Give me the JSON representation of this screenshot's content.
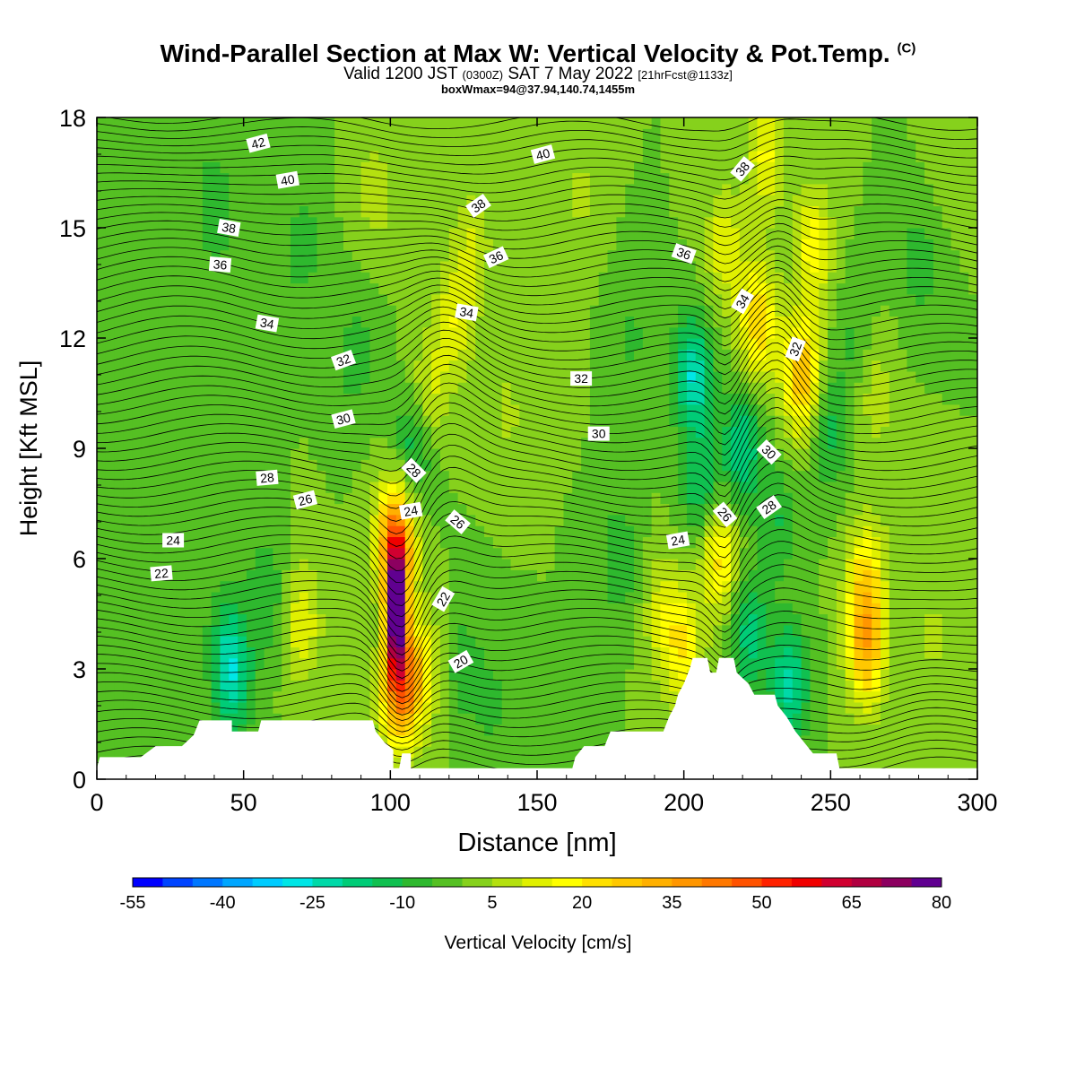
{
  "title": "Wind-Parallel Section at Max W: Vertical Velocity & Pot.Temp.",
  "title_mark": "(C)",
  "valid_line": {
    "prefix": "Valid 1200 JST",
    "utc": "(0300Z)",
    "date": "SAT 7 May 2022",
    "forecast": "[21hrFcst@1133z]"
  },
  "box_line": "boxWmax=94@37.94,140.74,1455m",
  "chart_data": {
    "type": "heatmap",
    "xlabel": "Distance [nm]",
    "ylabel": "Height [Kft MSL]",
    "xlim": [
      0,
      300
    ],
    "ylim": [
      0,
      18
    ],
    "xticks": [
      0,
      50,
      100,
      150,
      200,
      250,
      300
    ],
    "yticks": [
      0,
      3,
      6,
      9,
      12,
      15,
      18
    ],
    "colorbar": {
      "label": "Vertical Velocity [cm/s]",
      "tick_labels": [
        "-55",
        "-40",
        "-25",
        "-10",
        "5",
        "20",
        "35",
        "50",
        "65",
        "80"
      ],
      "tick_values": [
        -55,
        -40,
        -25,
        -10,
        5,
        20,
        35,
        50,
        65,
        80
      ],
      "levels": [
        -55,
        -50,
        -45,
        -40,
        -35,
        -30,
        -25,
        -20,
        -15,
        -10,
        -5,
        0,
        5,
        10,
        15,
        20,
        25,
        30,
        35,
        40,
        45,
        50,
        55,
        60,
        65,
        70,
        75,
        80
      ],
      "colors": [
        "#0000ff",
        "#0044ff",
        "#0077ff",
        "#00a6ff",
        "#00ccff",
        "#00e6e6",
        "#00d9a8",
        "#00cc77",
        "#10c050",
        "#2eb82e",
        "#55c023",
        "#86d11c",
        "#b4e010",
        "#e0f000",
        "#ffff00",
        "#ffe000",
        "#ffc800",
        "#ffb000",
        "#ff9600",
        "#ff7800",
        "#ff5200",
        "#ff2200",
        "#f00000",
        "#d00030",
        "#b00040",
        "#8c0060",
        "#600090"
      ]
    },
    "background_w": 0,
    "w_cells": [
      {
        "x": 102,
        "z": 4.6,
        "w": 94
      },
      {
        "x": 102,
        "z": 6.5,
        "w": 45
      },
      {
        "x": 103,
        "z": 2.5,
        "w": 40
      },
      {
        "x": 110,
        "z": 3.0,
        "w": 18
      },
      {
        "x": 108,
        "z": 9.0,
        "w": -15
      },
      {
        "x": 113,
        "z": 10.5,
        "w": 12
      },
      {
        "x": 122,
        "z": 12.5,
        "w": 14
      },
      {
        "x": 128,
        "z": 14.5,
        "w": 10
      },
      {
        "x": 140,
        "z": 10.0,
        "w": 6
      },
      {
        "x": 45,
        "z": 3.5,
        "w": -18
      },
      {
        "x": 47,
        "z": 2.3,
        "w": -12
      },
      {
        "x": 58,
        "z": 5.0,
        "w": -10
      },
      {
        "x": 70,
        "z": 4.3,
        "w": 14
      },
      {
        "x": 32,
        "z": 6.0,
        "w": -5
      },
      {
        "x": 40,
        "z": 15.5,
        "w": -10
      },
      {
        "x": 70,
        "z": 14.5,
        "w": -8
      },
      {
        "x": 25,
        "z": 12.0,
        "w": -4
      },
      {
        "x": 88,
        "z": 11.5,
        "w": -8
      },
      {
        "x": 95,
        "z": 16.0,
        "w": 8
      },
      {
        "x": 125,
        "z": 3.0,
        "w": -8
      },
      {
        "x": 135,
        "z": 2.0,
        "w": -6
      },
      {
        "x": 155,
        "z": 12.0,
        "w": 4
      },
      {
        "x": 165,
        "z": 16.0,
        "w": 6
      },
      {
        "x": 178,
        "z": 6.0,
        "w": -10
      },
      {
        "x": 182,
        "z": 12.0,
        "w": -6
      },
      {
        "x": 193,
        "z": 4.5,
        "w": 12
      },
      {
        "x": 200,
        "z": 3.5,
        "w": 18
      },
      {
        "x": 203,
        "z": 11.0,
        "w": -25
      },
      {
        "x": 206,
        "z": 8.0,
        "w": -15
      },
      {
        "x": 212,
        "z": 6.0,
        "w": 22
      },
      {
        "x": 214,
        "z": 14.5,
        "w": 14
      },
      {
        "x": 220,
        "z": 9.0,
        "w": -20
      },
      {
        "x": 222,
        "z": 4.0,
        "w": -18
      },
      {
        "x": 225,
        "z": 12.5,
        "w": 25
      },
      {
        "x": 228,
        "z": 17.0,
        "w": 16
      },
      {
        "x": 232,
        "z": 7.0,
        "w": -10
      },
      {
        "x": 236,
        "z": 2.6,
        "w": -22
      },
      {
        "x": 240,
        "z": 11.0,
        "w": 30
      },
      {
        "x": 244,
        "z": 14.5,
        "w": 18
      },
      {
        "x": 250,
        "z": 9.5,
        "w": -12
      },
      {
        "x": 262,
        "z": 3.6,
        "w": 30
      },
      {
        "x": 262,
        "z": 5.5,
        "w": 20
      },
      {
        "x": 258,
        "z": 12.0,
        "w": -6
      },
      {
        "x": 265,
        "z": 10.5,
        "w": 8
      },
      {
        "x": 280,
        "z": 14.0,
        "w": -8
      },
      {
        "x": 285,
        "z": 4.0,
        "w": 6
      },
      {
        "x": 290,
        "z": 17.0,
        "w": 4
      },
      {
        "x": 275,
        "z": 8.0,
        "w": 4
      }
    ],
    "terrain": [
      [
        0,
        0.3
      ],
      [
        1,
        0.6
      ],
      [
        15,
        0.6
      ],
      [
        20,
        0.9
      ],
      [
        29,
        0.9
      ],
      [
        33,
        1.2
      ],
      [
        35,
        1.6
      ],
      [
        46,
        1.6
      ],
      [
        46,
        1.3
      ],
      [
        55,
        1.3
      ],
      [
        56,
        1.6
      ],
      [
        94,
        1.6
      ],
      [
        95,
        1.3
      ],
      [
        98,
        1.0
      ],
      [
        101,
        0.8
      ],
      [
        101,
        0.3
      ],
      [
        103,
        0.3
      ],
      [
        104,
        0.7
      ],
      [
        107,
        0.7
      ],
      [
        107,
        0.3
      ],
      [
        162,
        0.3
      ],
      [
        163,
        0.6
      ],
      [
        166,
        0.9
      ],
      [
        173,
        0.9
      ],
      [
        175,
        1.3
      ],
      [
        193,
        1.3
      ],
      [
        195,
        1.7
      ],
      [
        197,
        2.0
      ],
      [
        198,
        2.3
      ],
      [
        200,
        2.6
      ],
      [
        202,
        3.0
      ],
      [
        203,
        3.3
      ],
      [
        208,
        3.3
      ],
      [
        209,
        2.9
      ],
      [
        211,
        2.9
      ],
      [
        212,
        3.3
      ],
      [
        217,
        3.3
      ],
      [
        218,
        2.9
      ],
      [
        222,
        2.6
      ],
      [
        224,
        2.3
      ],
      [
        231,
        2.3
      ],
      [
        232,
        2.0
      ],
      [
        235,
        1.7
      ],
      [
        238,
        1.3
      ],
      [
        241,
        1.0
      ],
      [
        244,
        0.7
      ],
      [
        252,
        0.7
      ],
      [
        253,
        0.3
      ],
      [
        300,
        0.3
      ]
    ],
    "isentropes": {
      "start_theta": 12,
      "step_theta": 0.5,
      "base_heights_kft": [
        0.4,
        0.65,
        0.9,
        1.15,
        1.4,
        1.65,
        1.9,
        2.15,
        2.4,
        2.65,
        2.9,
        3.15,
        3.4,
        3.65,
        3.9,
        4.15,
        4.4,
        4.65,
        4.9,
        5.15,
        5.4,
        5.65,
        5.9,
        6.15,
        6.4,
        6.65,
        6.9,
        7.15,
        7.4,
        7.65,
        7.9,
        8.15,
        8.4,
        8.65,
        8.9,
        9.15,
        9.4,
        9.65,
        9.9,
        10.15,
        10.4,
        10.65,
        10.9,
        11.15,
        11.4,
        11.65,
        11.9,
        12.15,
        12.4,
        12.65,
        12.9,
        13.15,
        13.4,
        13.65,
        13.9,
        14.15,
        14.4,
        14.65,
        14.9,
        15.15,
        15.4,
        15.65,
        15.9,
        16.15,
        16.4,
        16.65,
        16.9,
        17.15,
        17.4,
        17.65,
        17.9
      ]
    },
    "contour_labels": [
      {
        "text": "42",
        "x": 55,
        "z": 17.3,
        "angle": -15
      },
      {
        "text": "40",
        "x": 65,
        "z": 16.3,
        "angle": -10
      },
      {
        "text": "40",
        "x": 152,
        "z": 17.0,
        "angle": -15
      },
      {
        "text": "38",
        "x": 45,
        "z": 15.0,
        "angle": 10
      },
      {
        "text": "38",
        "x": 130,
        "z": 15.6,
        "angle": -35
      },
      {
        "text": "38",
        "x": 220,
        "z": 16.6,
        "angle": -50
      },
      {
        "text": "36",
        "x": 42,
        "z": 14.0,
        "angle": 5
      },
      {
        "text": "36",
        "x": 136,
        "z": 14.2,
        "angle": -25
      },
      {
        "text": "36",
        "x": 200,
        "z": 14.3,
        "angle": 20
      },
      {
        "text": "34",
        "x": 58,
        "z": 12.4,
        "angle": 10
      },
      {
        "text": "34",
        "x": 126,
        "z": 12.7,
        "angle": 10
      },
      {
        "text": "34",
        "x": 220,
        "z": 13.0,
        "angle": -60
      },
      {
        "text": "32",
        "x": 84,
        "z": 11.4,
        "angle": -20
      },
      {
        "text": "32",
        "x": 165,
        "z": 10.9,
        "angle": 0
      },
      {
        "text": "32",
        "x": 238,
        "z": 11.7,
        "angle": -70
      },
      {
        "text": "30",
        "x": 84,
        "z": 9.8,
        "angle": -15
      },
      {
        "text": "30",
        "x": 171,
        "z": 9.4,
        "angle": 0
      },
      {
        "text": "30",
        "x": 229,
        "z": 8.9,
        "angle": 45
      },
      {
        "text": "28",
        "x": 58,
        "z": 8.2,
        "angle": -5
      },
      {
        "text": "28",
        "x": 108,
        "z": 8.4,
        "angle": 45
      },
      {
        "text": "28",
        "x": 229,
        "z": 7.4,
        "angle": -35
      },
      {
        "text": "26",
        "x": 71,
        "z": 7.6,
        "angle": -15
      },
      {
        "text": "26",
        "x": 123,
        "z": 7.0,
        "angle": 40
      },
      {
        "text": "26",
        "x": 214,
        "z": 7.2,
        "angle": 50
      },
      {
        "text": "24",
        "x": 26,
        "z": 6.5,
        "angle": 0
      },
      {
        "text": "24",
        "x": 107,
        "z": 7.3,
        "angle": -10
      },
      {
        "text": "24",
        "x": 198,
        "z": 6.5,
        "angle": -10
      },
      {
        "text": "22",
        "x": 22,
        "z": 5.6,
        "angle": -5
      },
      {
        "text": "22",
        "x": 118,
        "z": 4.9,
        "angle": -60
      },
      {
        "text": "20",
        "x": 124,
        "z": 3.2,
        "angle": -30
      }
    ]
  }
}
